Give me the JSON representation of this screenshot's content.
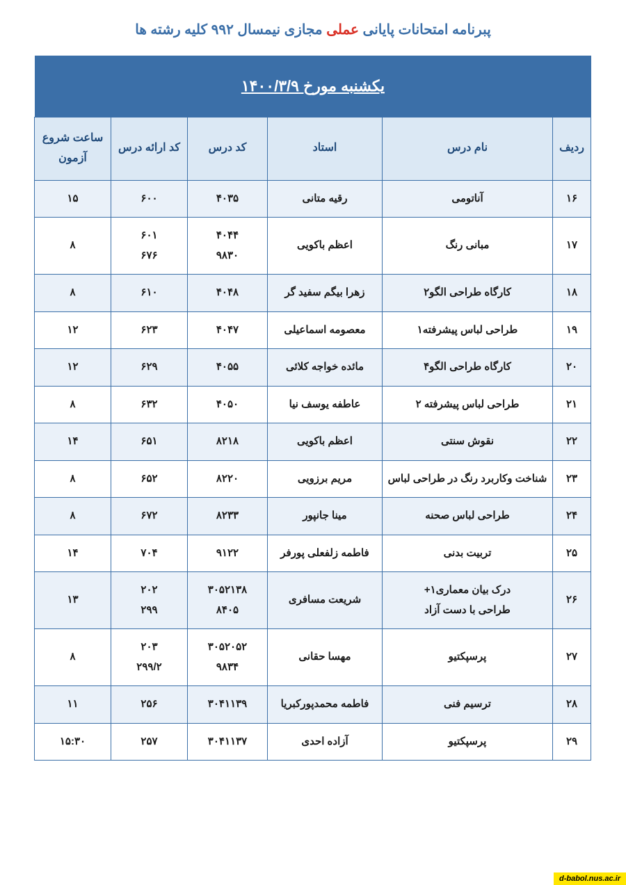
{
  "title": {
    "part1": "پبرنامه امتحانات پایانی ",
    "red": "عملی",
    "part2": " مجازی نیمسال ۹۹۲  کلیه رشته ها"
  },
  "banner": "یکشنبه مورخ    ۱۴۰۰/۳/۹",
  "headers": {
    "row": "ردیف",
    "name": "نام درس",
    "prof": "استاد",
    "code": "کد درس",
    "offer": "کد ارائه درس",
    "time": "ساعت شروع آزمون"
  },
  "rows": [
    {
      "row": "۱۶",
      "name": "آناتومی",
      "prof": "رقیه متانی",
      "code": "۴۰۳۵",
      "offer": "۶۰۰",
      "time": "۱۵"
    },
    {
      "row": "۱۷",
      "name": "مبانی رنگ",
      "prof": "اعظم باکویی",
      "code": "۴۰۴۴\n۹۸۳۰",
      "offer": "۶۰۱\n۶۷۶",
      "time": "۸"
    },
    {
      "row": "۱۸",
      "name": "کارگاه طراحی الگو۲",
      "prof": "زهرا بیگم سفید گر",
      "code": "۴۰۴۸",
      "offer": "۶۱۰",
      "time": "۸"
    },
    {
      "row": "۱۹",
      "name": "طراحی لباس پیشرفته۱",
      "prof": "معصومه اسماعیلی",
      "code": "۴۰۴۷",
      "offer": "۶۲۳",
      "time": "۱۲"
    },
    {
      "row": "۲۰",
      "name": "کارگاه طراحی الگو۴",
      "prof": "مائده خواجه کلائی",
      "code": "۴۰۵۵",
      "offer": "۶۲۹",
      "time": "۱۲"
    },
    {
      "row": "۲۱",
      "name": "طراحی لباس پیشرفته ۲",
      "prof": "عاطفه یوسف نیا",
      "code": "۴۰۵۰",
      "offer": "۶۳۲",
      "time": "۸"
    },
    {
      "row": "۲۲",
      "name": "نقوش سنتی",
      "prof": "اعظم باکویی",
      "code": "۸۲۱۸",
      "offer": "۶۵۱",
      "time": "۱۴"
    },
    {
      "row": "۲۳",
      "name": "شناخت وکاربرد رنگ در طراحی لباس",
      "prof": "مریم برزویی",
      "code": "۸۲۲۰",
      "offer": "۶۵۲",
      "time": "۸"
    },
    {
      "row": "۲۴",
      "name": "طراحی لباس صحنه",
      "prof": "مینا جانپور",
      "code": "۸۲۳۳",
      "offer": "۶۷۲",
      "time": "۸"
    },
    {
      "row": "۲۵",
      "name": "تربیت بدنی",
      "prof": "فاطمه زلفعلی پورفر",
      "code": "۹۱۲۲",
      "offer": "۷۰۴",
      "time": "۱۴"
    },
    {
      "row": "۲۶",
      "name": "درک بیان معماری۱+\nطراحی با دست آزاد",
      "prof": "شریعت مسافری",
      "code": "۳۰۵۲۱۳۸\n۸۴۰۵",
      "offer": "۲۰۲\n۲۹۹",
      "time": "۱۳"
    },
    {
      "row": "۲۷",
      "name": "پرسپکتیو",
      "prof": "مهسا حقانی",
      "code": "۳۰۵۲۰۵۲\n۹۸۳۴",
      "offer": "۲۰۳\n۲۹۹/۲",
      "time": "۸"
    },
    {
      "row": "۲۸",
      "name": "ترسیم فنی",
      "prof": "فاطمه محمدپورکبریا",
      "code": "۳۰۴۱۱۳۹",
      "offer": "۲۵۶",
      "time": "۱۱"
    },
    {
      "row": "۲۹",
      "name": "پرسپکتیو",
      "prof": "آزاده احدی",
      "code": "۳۰۴۱۱۳۷",
      "offer": "۲۵۷",
      "time": "۱۵:۳۰"
    }
  ],
  "footer": "d-babol.nus.ac.ir",
  "colors": {
    "primary": "#3b6fa8",
    "headerBg": "#dbe8f4",
    "oddRow": "#eaf1f9",
    "evenRow": "#ffffff",
    "red": "#d93025",
    "footerBg": "#ffe600"
  }
}
